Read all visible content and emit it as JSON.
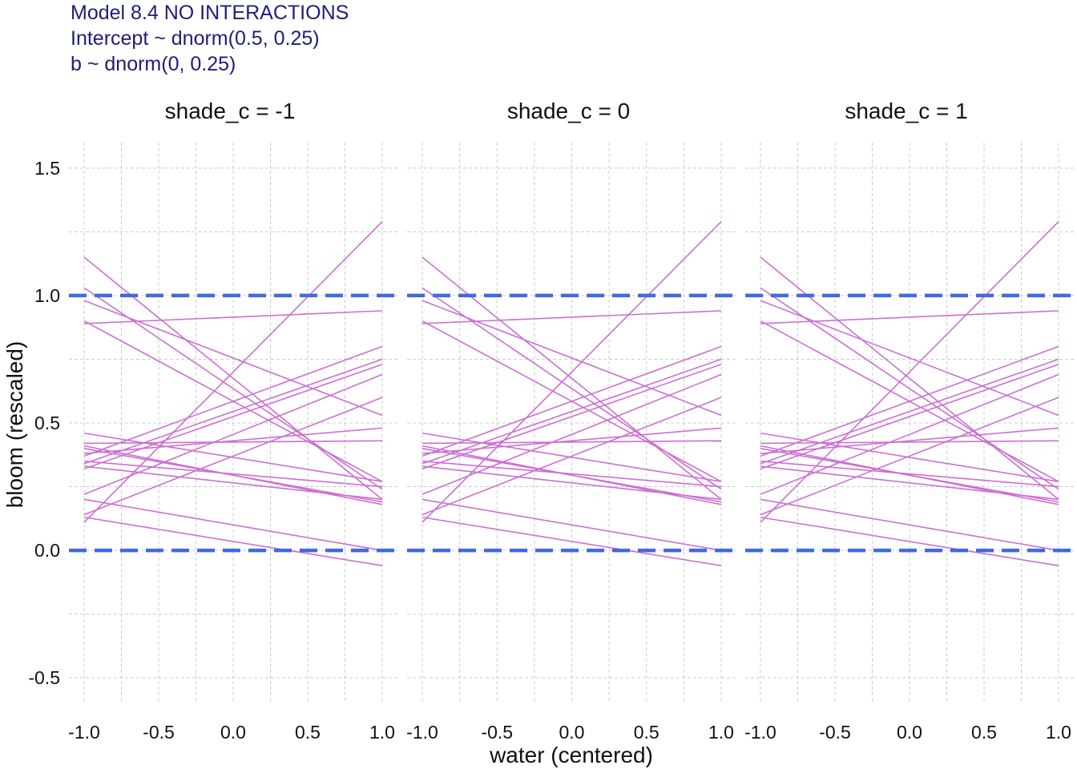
{
  "chart_data": {
    "type": "line",
    "title_lines": [
      "Model 8.4 NO INTERACTIONS",
      "Intercept ~ dnorm(0.5, 0.25)",
      "b ~ dnorm(0, 0.25)"
    ],
    "xlabel": "water (centered)",
    "ylabel": "bloom (rescaled)",
    "xlim": [
      -1.0,
      1.0
    ],
    "ylim": [
      -0.6,
      1.6
    ],
    "x_ticks": [
      -1.0,
      -0.5,
      0.0,
      0.5,
      1.0
    ],
    "x_tick_labels": [
      "-1.0",
      "-0.5",
      "0.0",
      "0.5",
      "1.0"
    ],
    "y_ticks": [
      -0.5,
      0.0,
      0.5,
      1.0,
      1.5
    ],
    "y_tick_labels": [
      "-0.5",
      "0.0",
      "0.5",
      "1.0",
      "1.5"
    ],
    "grid": true,
    "line_color": "#cc6fd2",
    "reference_line_color": "#4169e1",
    "reference_lines": [
      0.0,
      1.0
    ],
    "facets": [
      {
        "title": "shade_c = -1",
        "shade_c": -1
      },
      {
        "title": "shade_c = 0",
        "shade_c": 0
      },
      {
        "title": "shade_c = 1",
        "shade_c": 1
      }
    ],
    "series": [
      {
        "x": [
          -1.0,
          1.0
        ],
        "y": [
          0.11,
          1.29
        ]
      },
      {
        "x": [
          -1.0,
          1.0
        ],
        "y": [
          1.15,
          0.2
        ]
      },
      {
        "x": [
          -1.0,
          1.0
        ],
        "y": [
          1.03,
          0.24
        ]
      },
      {
        "x": [
          -1.0,
          1.0
        ],
        "y": [
          0.98,
          0.53
        ]
      },
      {
        "x": [
          -1.0,
          1.0
        ],
        "y": [
          0.9,
          0.27
        ]
      },
      {
        "x": [
          -1.0,
          1.0
        ],
        "y": [
          0.89,
          0.94
        ]
      },
      {
        "x": [
          -1.0,
          1.0
        ],
        "y": [
          0.46,
          0.27
        ]
      },
      {
        "x": [
          -1.0,
          1.0
        ],
        "y": [
          0.42,
          0.43
        ]
      },
      {
        "x": [
          -1.0,
          1.0
        ],
        "y": [
          0.41,
          0.18
        ]
      },
      {
        "x": [
          -1.0,
          1.0
        ],
        "y": [
          0.4,
          0.19
        ]
      },
      {
        "x": [
          -1.0,
          1.0
        ],
        "y": [
          0.38,
          0.48
        ]
      },
      {
        "x": [
          -1.0,
          1.0
        ],
        "y": [
          0.37,
          0.8
        ]
      },
      {
        "x": [
          -1.0,
          1.0
        ],
        "y": [
          0.35,
          0.25
        ]
      },
      {
        "x": [
          -1.0,
          1.0
        ],
        "y": [
          0.34,
          0.75
        ]
      },
      {
        "x": [
          -1.0,
          1.0
        ],
        "y": [
          0.33,
          0.2
        ]
      },
      {
        "x": [
          -1.0,
          1.0
        ],
        "y": [
          0.32,
          0.73
        ]
      },
      {
        "x": [
          -1.0,
          1.0
        ],
        "y": [
          0.22,
          0.69
        ]
      },
      {
        "x": [
          -1.0,
          1.0
        ],
        "y": [
          0.2,
          0.0
        ]
      },
      {
        "x": [
          -1.0,
          1.0
        ],
        "y": [
          0.14,
          0.6
        ]
      },
      {
        "x": [
          -1.0,
          1.0
        ],
        "y": [
          0.13,
          -0.06
        ]
      }
    ]
  }
}
